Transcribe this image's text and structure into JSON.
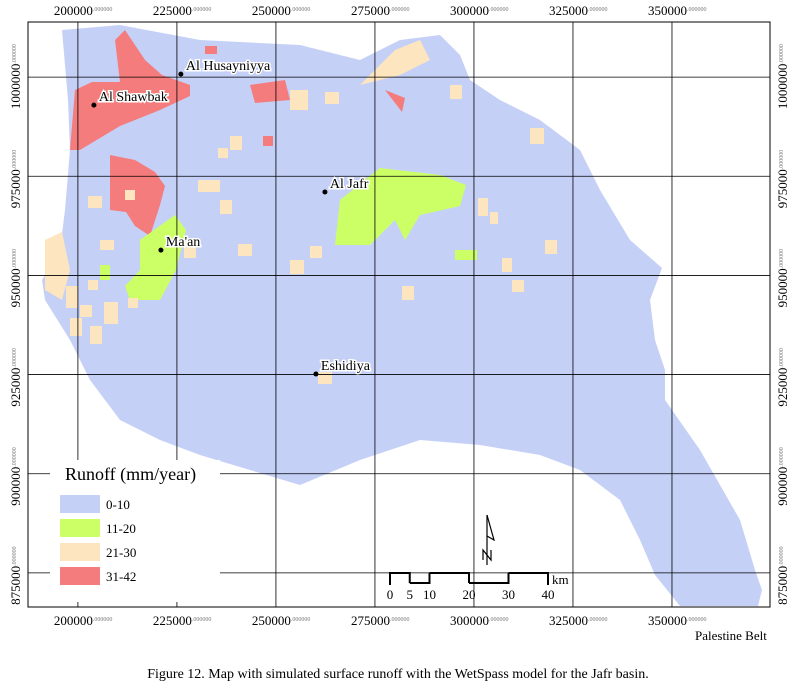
{
  "map": {
    "xlim": [
      187400,
      374750
    ],
    "ylim": [
      866400,
      1013900
    ],
    "xticks": [
      {
        "value": 200000,
        "label": "200000.000000"
      },
      {
        "value": 225000,
        "label": "225000.000000"
      },
      {
        "value": 250000,
        "label": "250000.000000"
      },
      {
        "value": 275000,
        "label": "275000.000000"
      },
      {
        "value": 300000,
        "label": "300000.000000"
      },
      {
        "value": 325000,
        "label": "325000.000000"
      },
      {
        "value": 350000,
        "label": "350000.000000"
      }
    ],
    "yticks": [
      {
        "value": 1000000,
        "label": "1000000.000000"
      },
      {
        "value": 975000,
        "label": "975000.000000"
      },
      {
        "value": 950000,
        "label": "950000.000000"
      },
      {
        "value": 925000,
        "label": "925000.000000"
      },
      {
        "value": 900000,
        "label": "900000.000000"
      },
      {
        "value": 875000,
        "label": "875000.000000"
      }
    ]
  },
  "places": [
    {
      "name": "Al Husayniyya",
      "x": 226000,
      "y": 1000750
    },
    {
      "name": "Al Shawbak",
      "x": 204040,
      "y": 992950
    },
    {
      "name": "Al Jafr",
      "x": 262370,
      "y": 971030
    },
    {
      "name": "Ma'an",
      "x": 220960,
      "y": 956390
    },
    {
      "name": "Eshidiya",
      "x": 260100,
      "y": 925140
    }
  ],
  "legend": {
    "title": "Runoff (mm/year)",
    "items": [
      {
        "label": "0-10",
        "color": "#c5d0f7"
      },
      {
        "label": "11-20",
        "color": "#ccff66"
      },
      {
        "label": "21-30",
        "color": "#fde5c0"
      },
      {
        "label": "31-42",
        "color": "#f47c7c"
      }
    ]
  },
  "scale_bar": {
    "ticks": [
      0,
      5,
      10,
      20,
      30,
      40
    ],
    "unit": "km"
  },
  "region_label": "Palestine Belt",
  "caption": "Figure 12. Map with simulated surface runoff with the WetSpass model for the Jafr basin."
}
